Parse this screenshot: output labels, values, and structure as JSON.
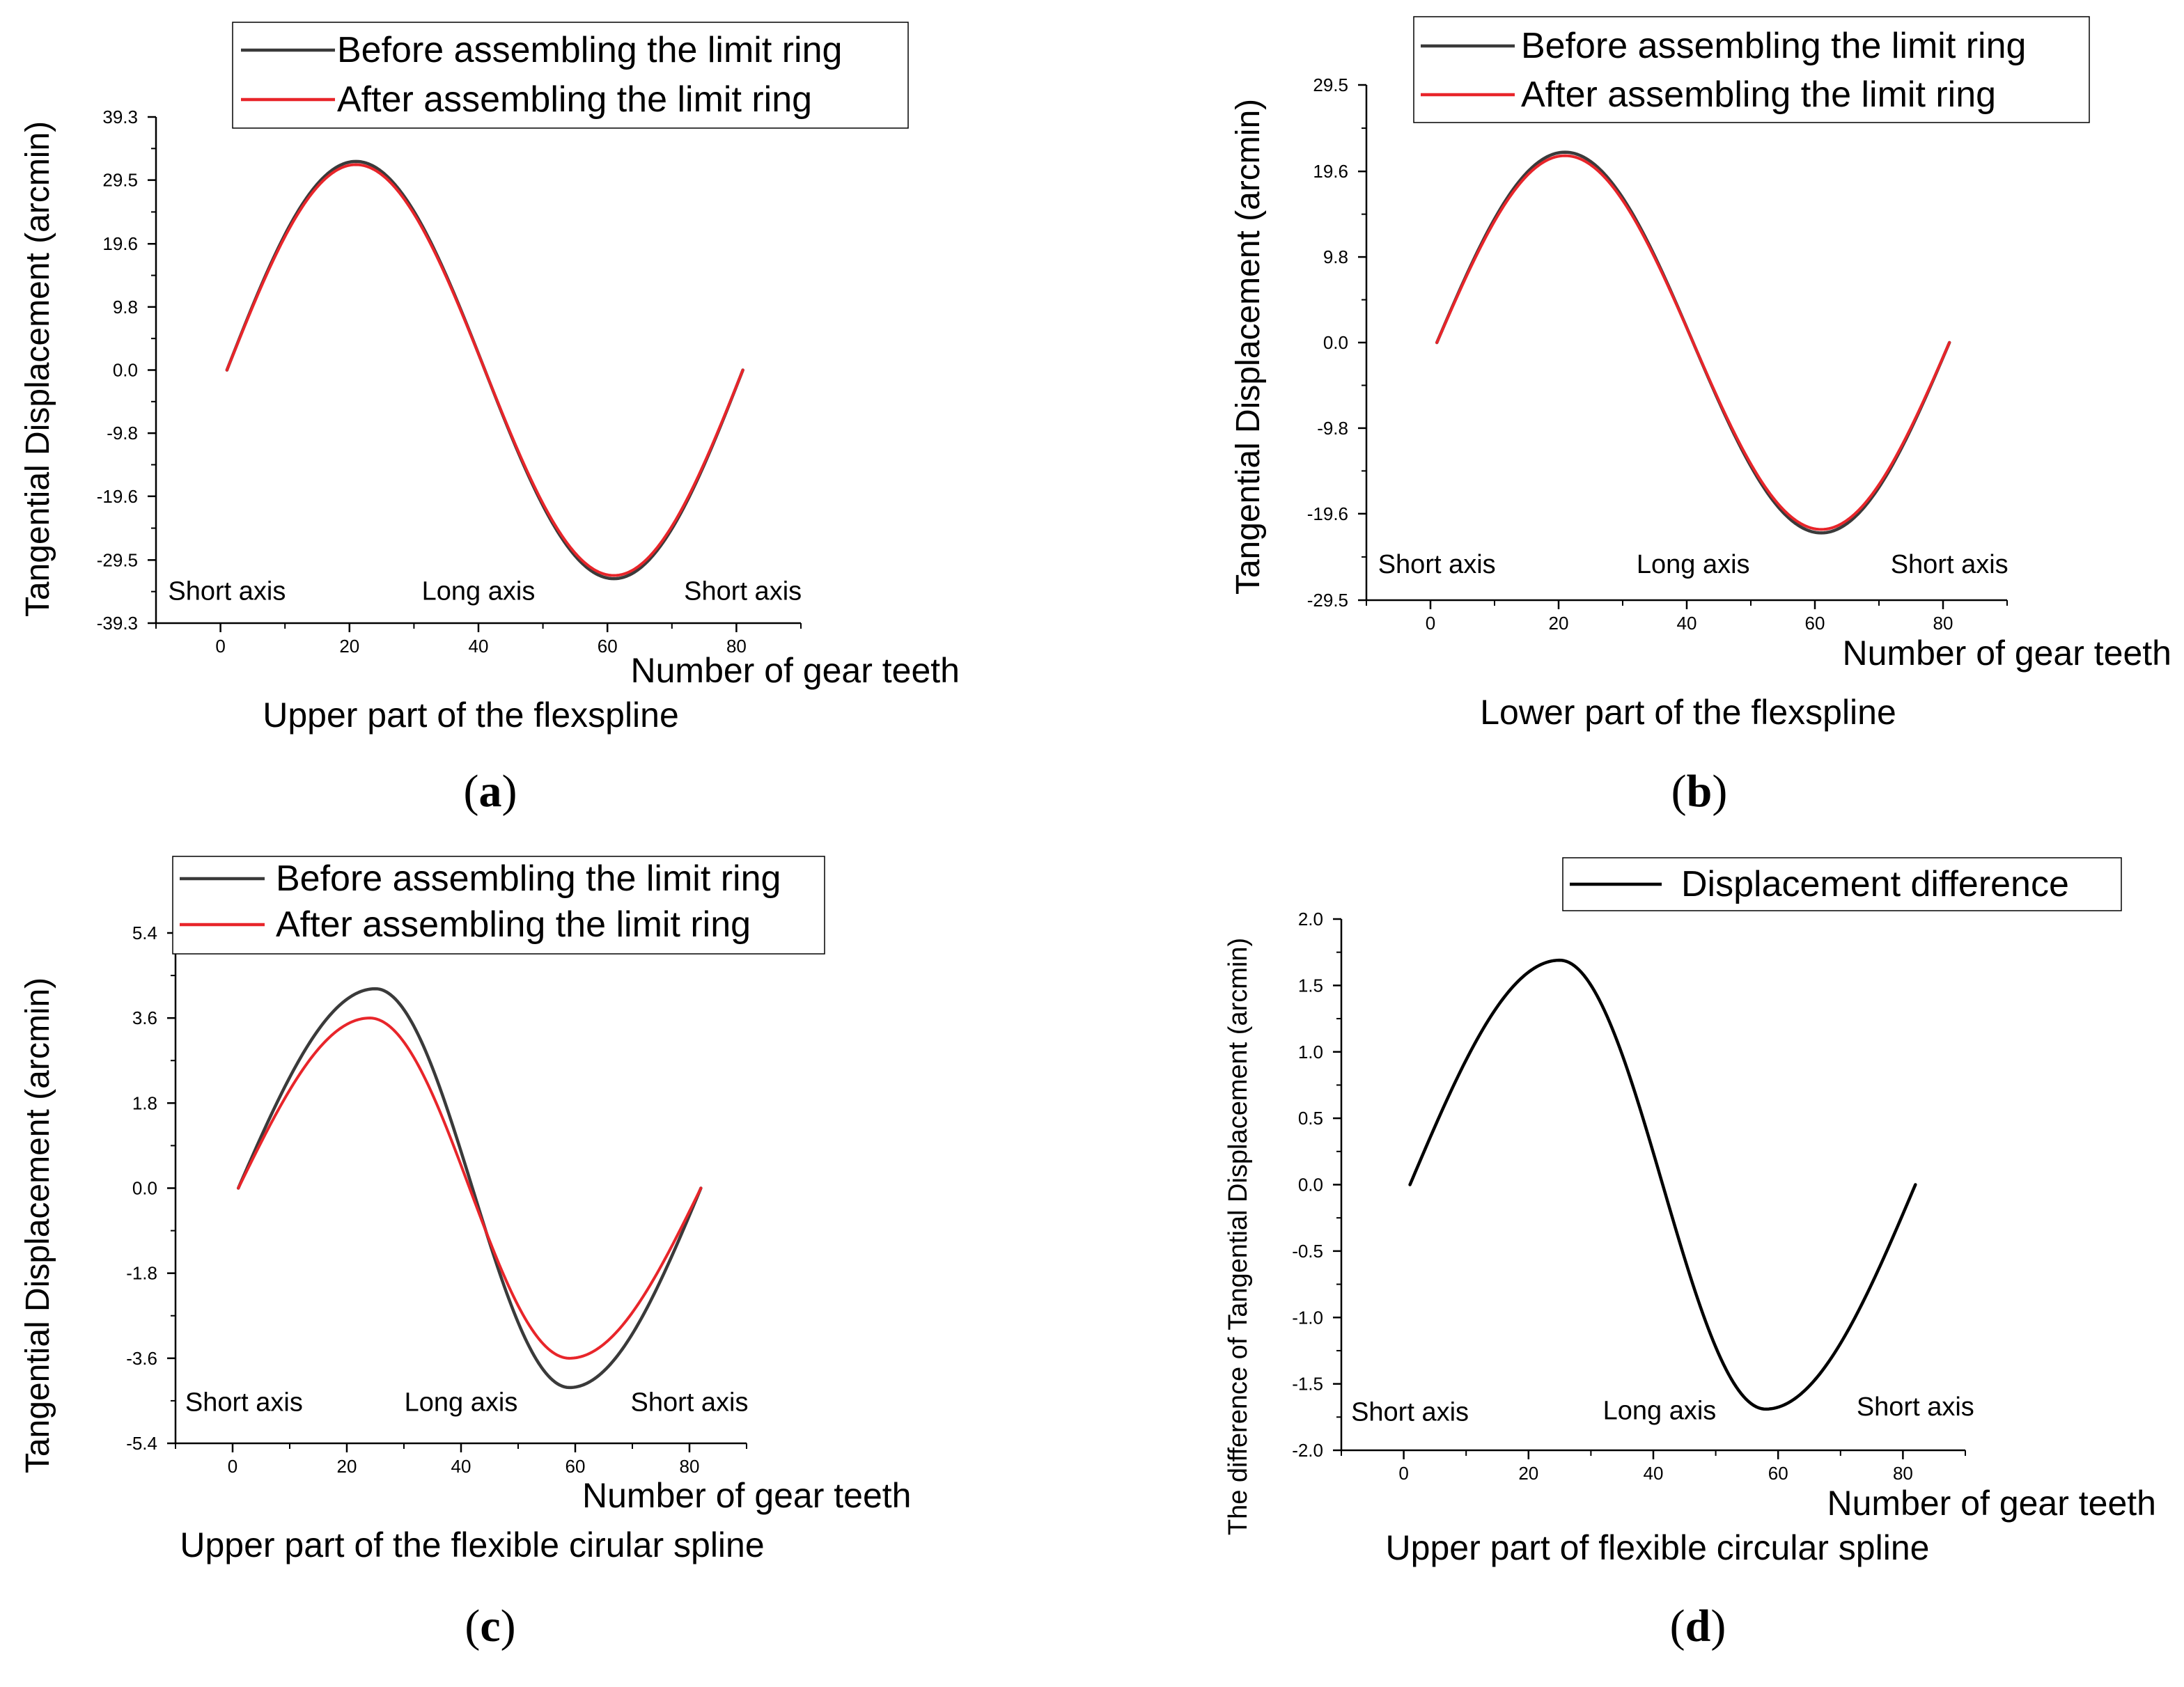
{
  "figure_caption_labels": [
    "a",
    "b",
    "c",
    "d"
  ],
  "chart_data": [
    {
      "type": "line",
      "panel": "a",
      "title": "",
      "xlabel": "Number of gear teeth",
      "ylabel": "Tangential Displacement (arcmin)",
      "subtitle": "Upper part of the flexspline",
      "caption": "a",
      "xlim": [
        -10,
        90
      ],
      "ylim": [
        -39.3,
        39.3
      ],
      "xticks": [
        0,
        20,
        40,
        60,
        80
      ],
      "yticks": [
        -39.3,
        -29.5,
        -19.6,
        -9.8,
        0.0,
        9.8,
        19.6,
        29.5,
        39.3
      ],
      "ytick_labels": [
        "-39.3",
        "-29.5",
        "-19.6",
        "-9.8",
        "0.0",
        "9.8",
        "19.6",
        "29.5",
        "39.3"
      ],
      "legend_position": "top",
      "annotations": [
        {
          "text": "Short axis",
          "x": 1,
          "y": -34.5
        },
        {
          "text": "Long axis",
          "x": 40,
          "y": -34.5
        },
        {
          "text": "Short axis",
          "x": 81,
          "y": -34.5
        }
      ],
      "series": [
        {
          "name": "Before assembling the limit ring",
          "color": "#3a3a3a",
          "x_start": 1,
          "x_end": 81,
          "amplitude": 32.4,
          "peak_x": 21,
          "trough_x": 61
        },
        {
          "name": "After assembling the limit ring",
          "color": "#e8252a",
          "x_start": 1,
          "x_end": 81,
          "amplitude": 31.9,
          "peak_x": 21,
          "trough_x": 61
        }
      ]
    },
    {
      "type": "line",
      "panel": "b",
      "title": "",
      "xlabel": "Number of gear teeth",
      "ylabel": "Tangential Displacement (arcmin)",
      "subtitle": "Lower part of the flexspline",
      "caption": "b",
      "xlim": [
        -10,
        90
      ],
      "ylim": [
        -29.5,
        29.5
      ],
      "xticks": [
        0,
        20,
        40,
        60,
        80
      ],
      "yticks": [
        -29.5,
        -19.6,
        -9.8,
        0.0,
        9.8,
        19.6,
        29.5
      ],
      "ytick_labels": [
        "-29.5",
        "-19.6",
        "-9.8",
        "0.0",
        "9.8",
        "19.6",
        "29.5"
      ],
      "legend_position": "top",
      "annotations": [
        {
          "text": "Short axis",
          "x": 1,
          "y": -25.5
        },
        {
          "text": "Long axis",
          "x": 41,
          "y": -25.5
        },
        {
          "text": "Short axis",
          "x": 81,
          "y": -25.5
        }
      ],
      "series": [
        {
          "name": "Before assembling the limit ring",
          "color": "#3a3a3a",
          "x_start": 1,
          "x_end": 81,
          "amplitude": 21.8,
          "peak_x": 21,
          "trough_x": 61
        },
        {
          "name": "After assembling the limit ring",
          "color": "#e8252a",
          "x_start": 1,
          "x_end": 81,
          "amplitude": 21.4,
          "peak_x": 21,
          "trough_x": 61
        }
      ]
    },
    {
      "type": "line",
      "panel": "c",
      "title": "",
      "xlabel": "Number of gear teeth",
      "ylabel": "Tangential Displacement (arcmin)",
      "subtitle": "Upper part of the flexible cirular spline",
      "caption": "c",
      "xlim": [
        -10,
        90
      ],
      "ylim": [
        -5.4,
        5.4
      ],
      "xticks": [
        0,
        20,
        40,
        60,
        80
      ],
      "yticks": [
        -5.4,
        -3.6,
        -1.8,
        0.0,
        1.8,
        3.6,
        5.4
      ],
      "ytick_labels": [
        "-5.4",
        "-3.6",
        "-1.8",
        "0.0",
        "1.8",
        "3.6",
        "5.4"
      ],
      "legend_position": "top",
      "annotations": [
        {
          "text": "Short axis",
          "x": 2,
          "y": -4.55
        },
        {
          "text": "Long axis",
          "x": 40,
          "y": -4.55
        },
        {
          "text": "Short axis",
          "x": 80,
          "y": -4.55
        }
      ],
      "series": [
        {
          "name": "Before assembling the limit ring",
          "color": "#3a3a3a",
          "x_start": 1,
          "x_end": 82,
          "amplitude": 4.22,
          "peak_x": 25,
          "trough_x": 59
        },
        {
          "name": "After assembling the limit ring",
          "color": "#e8252a",
          "x_start": 1,
          "x_end": 82,
          "amplitude": 3.6,
          "peak_x": 24,
          "trough_x": 59
        }
      ]
    },
    {
      "type": "line",
      "panel": "d",
      "title": "",
      "xlabel": "Number of gear teeth",
      "ylabel": "The difference of Tangential Displacement (arcmin)",
      "subtitle": "Upper part of flexible circular spline",
      "caption": "d",
      "xlim": [
        -10,
        90
      ],
      "ylim": [
        -2.0,
        2.0
      ],
      "xticks": [
        0,
        20,
        40,
        60,
        80
      ],
      "yticks": [
        -2.0,
        -1.5,
        -1.0,
        -0.5,
        0.0,
        0.5,
        1.0,
        1.5,
        2.0
      ],
      "ytick_labels": [
        "-2.0",
        "-1.5",
        "-1.0",
        "-0.5",
        "0.0",
        "0.5",
        "1.0",
        "1.5",
        "2.0"
      ],
      "legend_position": "top-right",
      "annotations": [
        {
          "text": "Short axis",
          "x": 1,
          "y": -1.72
        },
        {
          "text": "Long axis",
          "x": 41,
          "y": -1.71
        },
        {
          "text": "Short axis",
          "x": 82,
          "y": -1.68
        }
      ],
      "series": [
        {
          "name": "Displacement difference",
          "color": "#000000",
          "x_start": 1,
          "x_end": 82,
          "amplitude": 1.69,
          "peak_x": 25,
          "trough_x": 58
        }
      ]
    }
  ]
}
